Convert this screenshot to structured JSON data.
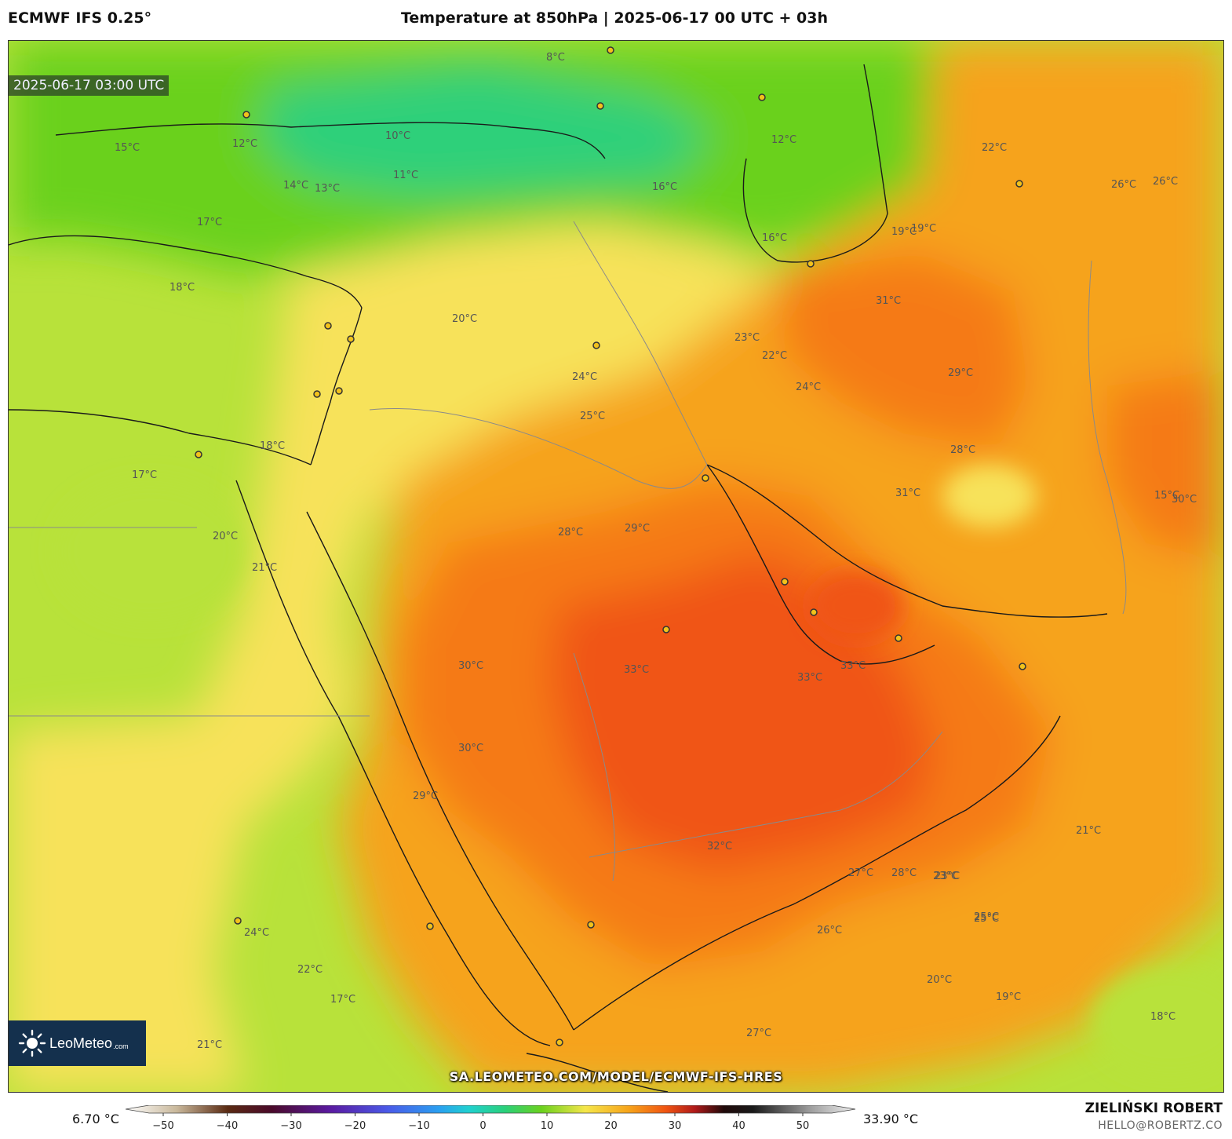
{
  "header": {
    "model": "ECMWF IFS 0.25°",
    "title": "Temperature at 850hPa | 2025-06-17 00 UTC + 03h"
  },
  "map": {
    "valid_time": "2025-06-17 03:00 UTC",
    "source_url": "SA.LEOMETEO.COM/MODEL/ECMWF-IFS-HRES",
    "logo": {
      "name": "LeoMeteo",
      "suffix": ".com"
    },
    "colors": {
      "cool_green": "#2fd07a",
      "green": "#6bd11e",
      "yellow_green": "#b8e23a",
      "yellow": "#f7e25a",
      "orange": "#f6a31a",
      "deep_orange": "#f57a14",
      "red_orange": "#f05512"
    },
    "contour_labels": [
      "8°C",
      "10°C",
      "11°C",
      "12°C",
      "13°C",
      "14°C",
      "15°C",
      "16°C",
      "17°C",
      "18°C",
      "19°C",
      "20°C",
      "21°C",
      "22°C",
      "23°C",
      "24°C",
      "25°C",
      "26°C",
      "27°C",
      "28°C",
      "29°C",
      "30°C",
      "31°C",
      "32°C",
      "33°C",
      "12°C",
      "15°C",
      "16°C",
      "17°C",
      "18°C",
      "19°C",
      "20°C",
      "21°C",
      "22°C",
      "23°C",
      "24°C",
      "25°C",
      "26°C",
      "27°C",
      "28°C",
      "29°C",
      "30°C",
      "31°C",
      "33°C",
      "17°C",
      "18°C",
      "19°C",
      "20°C",
      "21°C",
      "22°C",
      "23°C",
      "24°C",
      "25°C",
      "26°C",
      "28°C",
      "29°C",
      "30°C",
      "33°C"
    ]
  },
  "legend": {
    "min_label": "6.70 °C",
    "max_label": "33.90 °C",
    "ticks": [
      "−50",
      "−40",
      "−30",
      "−20",
      "−10",
      "0",
      "10",
      "20",
      "30",
      "40",
      "50"
    ]
  },
  "footer": {
    "author": "ZIELIŃSKI ROBERT",
    "email": "HELLO@ROBERTZ.CO"
  }
}
